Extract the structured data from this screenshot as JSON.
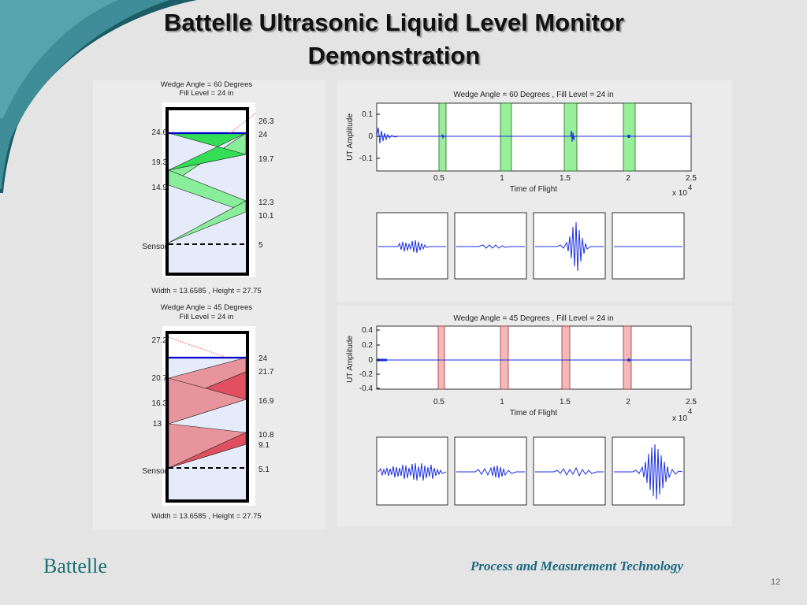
{
  "slide": {
    "title_line1": "Battelle Ultrasonic Liquid Level Monitor",
    "title_line2": "Demonstration",
    "footer_org": "Battelle",
    "footer_dept": "Process and Measurement Technology",
    "page_number": "12",
    "colors": {
      "teal_dark": "#1c5c66",
      "teal_light": "#4f9ea6",
      "footer_teal": "#1a7070"
    }
  },
  "diagrams": [
    {
      "title": "Wedge Angle = 60 Degrees",
      "subtitle": "Fill Level = 24 in",
      "caption": "Width = 13.6585 , Height = 27.75",
      "left_labels": [
        "24.6",
        "19.3",
        "14.9",
        "Sensor"
      ],
      "right_labels": [
        "26.3",
        "24",
        "19.7",
        "12.3",
        "10.1",
        "5"
      ],
      "beam_color": "#33dd55",
      "beam_fill_light": "#88ee99",
      "liquid_color": "#e6ebfa"
    },
    {
      "title": "Wedge Angle = 45 Degrees",
      "subtitle": "Fill Level = 24 in",
      "caption": "Width = 13.6585 , Height = 27.75",
      "left_labels": [
        "27.2",
        "20.7",
        "16.3",
        "13",
        "Sensor"
      ],
      "right_labels": [
        "24",
        "21.7",
        "16.9",
        "10.8",
        "9.1",
        "5.1"
      ],
      "beam_color": "#e05060",
      "beam_fill_light": "#e8949c",
      "liquid_color": "#e6ebfa"
    }
  ],
  "traces": [
    {
      "title": "Wedge Angle = 60 Degrees , Fill Level = 24 in",
      "ylabel": "UT Amplitude",
      "xlabel": "Time of Flight",
      "x_multiplier": "x 10",
      "x_exponent": "4",
      "y_ticks": [
        "0.1",
        "0",
        "-0.1"
      ],
      "x_ticks": [
        "0.5",
        "1",
        "1.5",
        "2",
        "2.5"
      ],
      "window_color": "#99ee99",
      "window_edge": "#226622",
      "trace_color": "#1a2ee0"
    },
    {
      "title": "Wedge Angle = 45 Degrees , Fill Level = 24 in",
      "ylabel": "UT Amplitude",
      "xlabel": "Time of Flight",
      "x_multiplier": "x 10",
      "x_exponent": "4",
      "y_ticks": [
        "0.4",
        "0.2",
        "0",
        "-0.2",
        "-0.4"
      ],
      "x_ticks": [
        "0.5",
        "1",
        "1.5",
        "2",
        "2.5"
      ],
      "window_color": "#f5b8b8",
      "window_edge": "#993333",
      "trace_color": "#1a2ee0"
    }
  ]
}
